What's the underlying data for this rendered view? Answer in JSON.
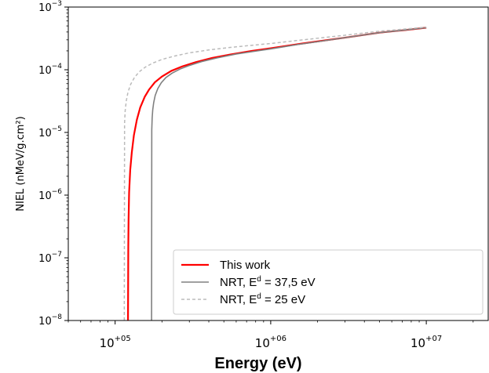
{
  "chart_data": {
    "type": "line",
    "xlabel": "Energy (eV)",
    "ylabel": "NIEL (nMeV/g.cm²)",
    "xscale": "log",
    "yscale": "log",
    "xlim": [
      50000,
      25000000
    ],
    "ylim": [
      1e-08,
      0.001
    ],
    "grid": false,
    "legend_position": "lower-right",
    "xticks": [
      {
        "value": 100000,
        "base": "10",
        "exp": "+05"
      },
      {
        "value": 1000000,
        "base": "10",
        "exp": "+06"
      },
      {
        "value": 10000000,
        "base": "10",
        "exp": "+07"
      }
    ],
    "yticks": [
      {
        "value": 1e-08,
        "base": "10",
        "exp": "−8"
      },
      {
        "value": 1e-07,
        "base": "10",
        "exp": "−7"
      },
      {
        "value": 1e-06,
        "base": "10",
        "exp": "−6"
      },
      {
        "value": 1e-05,
        "base": "10",
        "exp": "−5"
      },
      {
        "value": 0.0001,
        "base": "10",
        "exp": "−4"
      },
      {
        "value": 0.001,
        "base": "10",
        "exp": "−3"
      }
    ],
    "series": [
      {
        "name": "This work",
        "legend_parts": [
          "This work"
        ],
        "color": "#ff0000",
        "style": "solid",
        "x": [
          121000,
          121500,
          122000,
          123000,
          125000,
          128000,
          132000,
          138000,
          145000,
          155000,
          165000,
          180000,
          200000,
          230000,
          270000,
          330000,
          420000,
          550000,
          750000,
          1000000,
          1500000,
          2000000,
          3000000,
          5000000,
          7000000,
          10000000
        ],
        "y": [
          1e-08,
          1.5e-07,
          4e-07,
          1.1e-06,
          2.5e-06,
          4.8e-06,
          9e-06,
          1.6e-05,
          2.5e-05,
          3.7e-05,
          4.8e-05,
          6.3e-05,
          7.8e-05,
          9.6e-05,
          0.000113,
          0.000132,
          0.000154,
          0.000175,
          0.000199,
          0.00022,
          0.000256,
          0.000283,
          0.000325,
          0.00039,
          0.000425,
          0.000468
        ]
      },
      {
        "name": "NRT, Ed = 37,5 eV",
        "legend_parts": [
          "NRT, E",
          "d",
          " = 37,5 eV"
        ],
        "color": "#808080",
        "style": "solid",
        "x": [
          171500,
          172000,
          173000,
          174500,
          177000,
          181000,
          188000,
          198000,
          212000,
          232000,
          260000,
          300000,
          360000,
          450000,
          600000,
          800000,
          1000000,
          1500000,
          2000000,
          3000000,
          5000000,
          7000000,
          10000000
        ],
        "y": [
          1e-08,
          1.1e-05,
          1.7e-05,
          2.3e-05,
          3e-05,
          3.9e-05,
          5e-05,
          6.2e-05,
          7.5e-05,
          8.8e-05,
          0.000102,
          0.000117,
          0.000135,
          0.000154,
          0.000178,
          0.000198,
          0.000215,
          0.000253,
          0.00028,
          0.000325,
          0.00039,
          0.000425,
          0.000468
        ]
      },
      {
        "name": "NRT, Ed = 25 eV",
        "legend_parts": [
          "NRT, E",
          "d",
          " = 25 eV"
        ],
        "color": "#bbbbbb",
        "style": "dashed",
        "x": [
          114500,
          115000,
          116000,
          118000,
          121000,
          126000,
          133000,
          143000,
          157000,
          175000,
          200000,
          240000,
          300000,
          400000,
          550000,
          750000,
          1000000,
          1500000,
          2000000,
          3000000,
          5000000,
          7000000,
          10000000
        ],
        "y": [
          1e-08,
          1.4e-05,
          2.2e-05,
          3.2e-05,
          4.4e-05,
          5.9e-05,
          7.5e-05,
          9.3e-05,
          0.000111,
          0.000128,
          0.000146,
          0.000165,
          0.000186,
          0.000207,
          0.000227,
          0.000245,
          0.000262,
          0.000294,
          0.000318,
          0.000355,
          0.000412,
          0.000442,
          0.000478
        ]
      }
    ]
  }
}
